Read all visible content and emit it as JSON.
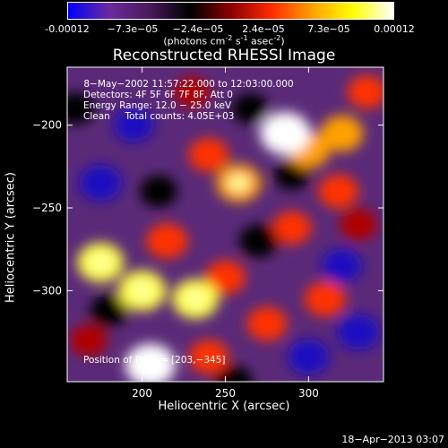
{
  "colorbar": {
    "ticks": [
      "-0.00012",
      "−7.3e−05",
      "−2.4e−05",
      "2.4e−05",
      "7.3e−05",
      "0.00012"
    ],
    "units_text": "(photons cm",
    "units_sup1": "-2",
    "units_mid": " s",
    "units_sup2": "-1",
    "units_end": " asec",
    "units_sup3": "-2",
    "units_close": ")",
    "colors": [
      "#0000ff",
      "#6a2aa0",
      "#4a1a5a",
      "#000000",
      "#8a0000",
      "#ff2a00",
      "#ffa000",
      "#ffff00",
      "#ffffff"
    ]
  },
  "title": "Reconstructed RHESSI Image",
  "annotations": {
    "line1": " 8−May−2002 11:57:22.000 to 12:03:00.000",
    "line2": "Detectors: 4F 5F 6F 7F 8F, Att 0",
    "line3": "Energy Range: 12.0 − 25.0 keV",
    "line4": "Clean     Total counts: 4.05E+03",
    "peak": "Position of Peak = [203,−345]"
  },
  "timestamp": "18−Apr−2013 03:07",
  "chart_data": {
    "type": "heatmap",
    "title": "Reconstructed RHESSI Image",
    "xlabel": "Heliocentric X (arcsec)",
    "ylabel": "Heliocentric Y (arcsec)",
    "xlim": [
      155,
      345
    ],
    "ylim": [
      -355,
      -165
    ],
    "xticks": [
      200,
      250,
      300
    ],
    "yticks": [
      -200,
      -250,
      -300
    ],
    "colorbar_range": [
      -0.00012,
      0.00012
    ],
    "peak": [
      203,
      -345
    ],
    "blobs": [
      {
        "x": 286,
        "y": -205,
        "v": 1.0
      },
      {
        "x": 300,
        "y": -215,
        "v": 0.7
      },
      {
        "x": 258,
        "y": -235,
        "v": 0.8
      },
      {
        "x": 240,
        "y": -218,
        "v": 0.6
      },
      {
        "x": 318,
        "y": -240,
        "v": 0.6
      },
      {
        "x": 320,
        "y": -205,
        "v": 0.7
      },
      {
        "x": 175,
        "y": -283,
        "v": 0.85
      },
      {
        "x": 200,
        "y": -300,
        "v": 0.9
      },
      {
        "x": 232,
        "y": -305,
        "v": 0.85
      },
      {
        "x": 250,
        "y": -292,
        "v": 0.6
      },
      {
        "x": 215,
        "y": -270,
        "v": 0.65
      },
      {
        "x": 290,
        "y": -262,
        "v": 0.55
      },
      {
        "x": 275,
        "y": -320,
        "v": 0.6
      },
      {
        "x": 310,
        "y": -305,
        "v": 0.65
      },
      {
        "x": 330,
        "y": -260,
        "v": 0.5
      },
      {
        "x": 205,
        "y": -345,
        "v": 1.0
      },
      {
        "x": 240,
        "y": -340,
        "v": 0.6
      },
      {
        "x": 168,
        "y": -330,
        "v": 0.5
      },
      {
        "x": 335,
        "y": -180,
        "v": 0.55
      },
      {
        "x": 230,
        "y": -180,
        "v": 0.45
      },
      {
        "x": 175,
        "y": -235,
        "v": -0.7
      },
      {
        "x": 195,
        "y": -200,
        "v": -0.6
      },
      {
        "x": 160,
        "y": -190,
        "v": -0.5
      },
      {
        "x": 210,
        "y": -240,
        "v": -0.5
      },
      {
        "x": 270,
        "y": -270,
        "v": -0.55
      },
      {
        "x": 320,
        "y": -285,
        "v": -0.6
      },
      {
        "x": 300,
        "y": -340,
        "v": -0.65
      },
      {
        "x": 330,
        "y": -325,
        "v": -0.7
      },
      {
        "x": 180,
        "y": -312,
        "v": -0.5
      },
      {
        "x": 255,
        "y": -355,
        "v": -0.5
      },
      {
        "x": 265,
        "y": -190,
        "v": -0.45
      },
      {
        "x": 290,
        "y": -230,
        "v": -0.4
      }
    ]
  }
}
